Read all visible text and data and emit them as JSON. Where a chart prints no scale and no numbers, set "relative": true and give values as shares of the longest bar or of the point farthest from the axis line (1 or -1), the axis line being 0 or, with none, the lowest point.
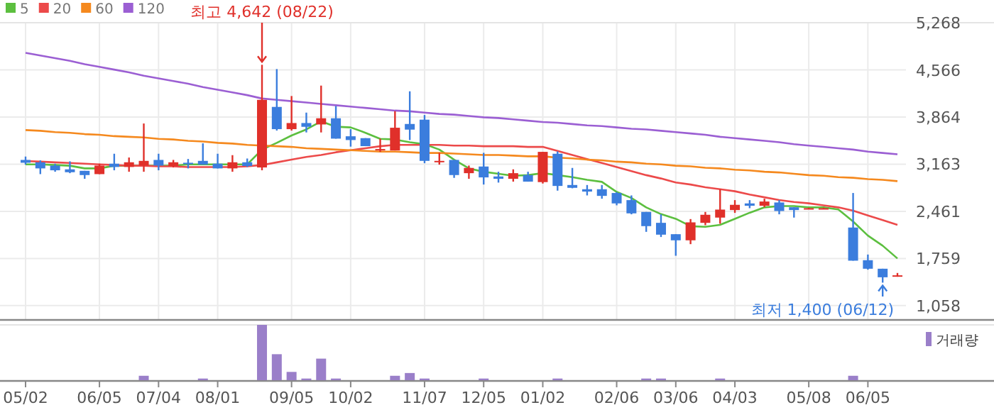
{
  "chart_data": [
    {
      "type": "candlestick",
      "categories": [
        null,
        null,
        null,
        null,
        null,
        null,
        null,
        null,
        null,
        null,
        null,
        null,
        null,
        null,
        null,
        null,
        null,
        null,
        null,
        null,
        null,
        null,
        null,
        null,
        null,
        null,
        null,
        null,
        null,
        null,
        null,
        null,
        null,
        null,
        null,
        null,
        null,
        null,
        null,
        null,
        null,
        null,
        null,
        null,
        null,
        null,
        null,
        null,
        null,
        null,
        null,
        null,
        null,
        null,
        null,
        null,
        null,
        null,
        null,
        null
      ],
      "ohlc": [
        [
          3226,
          3276,
          3156,
          3184
        ],
        [
          3191,
          3219,
          3015,
          3100
        ],
        [
          3142,
          3170,
          3050,
          3072
        ],
        [
          3086,
          3205,
          3029,
          3043
        ],
        [
          3064,
          3064,
          2945,
          3001
        ],
        [
          3015,
          3170,
          3015,
          3142
        ],
        [
          3170,
          3318,
          3072,
          3121
        ],
        [
          3121,
          3262,
          3050,
          3191
        ],
        [
          3142,
          3768,
          3050,
          3212
        ],
        [
          3226,
          3318,
          3072,
          3142
        ],
        [
          3135,
          3226,
          3114,
          3191
        ],
        [
          3184,
          3240,
          3100,
          3163
        ],
        [
          3212,
          3473,
          3156,
          3156
        ],
        [
          3170,
          3318,
          3100,
          3100
        ],
        [
          3100,
          3297,
          3050,
          3191
        ],
        [
          3191,
          3247,
          3121,
          3135
        ],
        [
          3114,
          4642,
          3072,
          4120
        ],
        [
          4015,
          4578,
          3663,
          3684
        ],
        [
          3684,
          4177,
          3663,
          3775
        ],
        [
          3775,
          3930,
          3635,
          3719
        ],
        [
          3754,
          4332,
          3635,
          3846
        ],
        [
          3846,
          4029,
          3543,
          3543
        ],
        [
          3578,
          3684,
          3424,
          3522
        ],
        [
          3550,
          3550,
          3431,
          3431
        ],
        [
          3367,
          3543,
          3346,
          3388
        ],
        [
          3367,
          3952,
          3367,
          3705
        ],
        [
          3761,
          4247,
          3522,
          3677
        ],
        [
          3825,
          3895,
          3177,
          3212
        ],
        [
          3191,
          3332,
          3156,
          3212
        ],
        [
          3226,
          3226,
          2959,
          3001
        ],
        [
          3029,
          3142,
          2945,
          3107
        ],
        [
          3128,
          3332,
          2860,
          2966
        ],
        [
          2980,
          3050,
          2889,
          2945
        ],
        [
          2945,
          3086,
          2903,
          3029
        ],
        [
          3001,
          3050,
          2903,
          2903
        ],
        [
          2896,
          3346,
          2875,
          3346
        ],
        [
          3318,
          3353,
          2769,
          2839
        ],
        [
          2853,
          3107,
          2804,
          2811
        ],
        [
          2790,
          2853,
          2698,
          2755
        ],
        [
          2790,
          2853,
          2649,
          2691
        ],
        [
          2734,
          2748,
          2551,
          2579
        ],
        [
          2628,
          2698,
          2417,
          2431
        ],
        [
          2452,
          2452,
          2156,
          2241
        ],
        [
          2290,
          2417,
          2079,
          2114
        ],
        [
          2121,
          2121,
          1800,
          2030
        ],
        [
          2030,
          2346,
          1973,
          2297
        ],
        [
          2290,
          2452,
          2255,
          2410
        ],
        [
          2368,
          2790,
          2276,
          2487
        ],
        [
          2480,
          2628,
          2438,
          2558
        ],
        [
          2579,
          2628,
          2508,
          2544
        ],
        [
          2544,
          2649,
          2523,
          2607
        ],
        [
          2593,
          2628,
          2417,
          2466
        ],
        [
          2522,
          2522,
          2368,
          2480
        ],
        [
          2494,
          2515,
          2494,
          2508
        ],
        [
          2494,
          2515,
          2494,
          2508
        ],
        null,
        [
          2220,
          2734,
          1727,
          1727
        ],
        [
          1734,
          1818,
          1593,
          1607
        ],
        [
          1607,
          1607,
          1400,
          1480
        ],
        [
          1488,
          1544,
          1488,
          1509
        ]
      ],
      "series": [
        {
          "name": "5",
          "type": "line",
          "color": "#5cbf3f",
          "values": [
            3160,
            3160,
            3150,
            3140,
            3100,
            3100,
            3140,
            3140,
            3140,
            3140,
            3140,
            3160,
            3160,
            3160,
            3160,
            3160,
            3380,
            3480,
            3590,
            3680,
            3800,
            3720,
            3710,
            3630,
            3540,
            3530,
            3490,
            3460,
            3380,
            3230,
            3100,
            3050,
            3020,
            2990,
            3000,
            3030,
            3000,
            2970,
            2930,
            2900,
            2750,
            2660,
            2520,
            2420,
            2350,
            2240,
            2230,
            2260,
            2350,
            2440,
            2520,
            2540,
            2540,
            2520,
            2520,
            2490,
            2310,
            2100,
            1950,
            1760
          ]
        },
        {
          "name": "20",
          "type": "line",
          "color": "#ec4a4a",
          "values": [
            3210,
            3200,
            3190,
            3180,
            3170,
            3160,
            3150,
            3140,
            3140,
            3130,
            3130,
            3120,
            3120,
            3120,
            3120,
            3130,
            3150,
            3190,
            3230,
            3270,
            3300,
            3340,
            3370,
            3400,
            3430,
            3450,
            3450,
            3450,
            3450,
            3440,
            3440,
            3430,
            3430,
            3430,
            3420,
            3420,
            3360,
            3300,
            3240,
            3180,
            3120,
            3060,
            3000,
            2950,
            2890,
            2860,
            2820,
            2790,
            2760,
            2710,
            2670,
            2630,
            2600,
            2580,
            2550,
            2520,
            2470,
            2400,
            2330,
            2260
          ]
        },
        {
          "name": "60",
          "type": "line",
          "color": "#f5891e",
          "values": [
            3670,
            3660,
            3640,
            3630,
            3610,
            3600,
            3580,
            3570,
            3560,
            3540,
            3530,
            3510,
            3500,
            3480,
            3470,
            3450,
            3440,
            3430,
            3420,
            3400,
            3390,
            3380,
            3370,
            3360,
            3350,
            3350,
            3340,
            3330,
            3330,
            3320,
            3310,
            3300,
            3300,
            3290,
            3280,
            3280,
            3260,
            3250,
            3230,
            3220,
            3200,
            3190,
            3170,
            3160,
            3140,
            3130,
            3110,
            3100,
            3080,
            3070,
            3050,
            3040,
            3020,
            3000,
            2990,
            2970,
            2960,
            2940,
            2930,
            2910
          ]
        },
        {
          "name": "120",
          "type": "line",
          "color": "#9b5fd3",
          "values": [
            4820,
            4780,
            4740,
            4700,
            4650,
            4610,
            4570,
            4530,
            4480,
            4440,
            4400,
            4360,
            4310,
            4270,
            4230,
            4190,
            4140,
            4120,
            4100,
            4080,
            4060,
            4040,
            4020,
            4000,
            3980,
            3960,
            3950,
            3930,
            3910,
            3900,
            3880,
            3860,
            3850,
            3830,
            3810,
            3790,
            3780,
            3760,
            3740,
            3730,
            3710,
            3690,
            3680,
            3660,
            3640,
            3620,
            3600,
            3570,
            3550,
            3530,
            3510,
            3490,
            3460,
            3440,
            3420,
            3400,
            3380,
            3350,
            3330,
            3310
          ]
        }
      ],
      "ylim": [
        856,
        5268
      ],
      "yticks": [
        {
          "value": 1058,
          "label": "1,058"
        },
        {
          "value": 1759,
          "label": "1,759"
        },
        {
          "value": 2461,
          "label": "2,461"
        },
        {
          "value": 3163,
          "label": "3,163"
        },
        {
          "value": 3864,
          "label": "3,864"
        },
        {
          "value": 4566,
          "label": "4,566"
        },
        {
          "value": 5268,
          "label": "5,268"
        }
      ],
      "grid": true,
      "legend": "top left",
      "tick_labels": "y",
      "annotations": [
        "최고 4,642 (08/22)",
        "최저 1,400 (06/12)"
      ]
    },
    {
      "type": "bar",
      "relative": true,
      "categories": [
        "05/02",
        null,
        null,
        null,
        null,
        "06/05",
        null,
        null,
        null,
        "07/04",
        null,
        null,
        null,
        "08/01",
        null,
        null,
        null,
        null,
        "09/05",
        null,
        null,
        null,
        "10/02",
        null,
        null,
        null,
        null,
        "11/07",
        null,
        null,
        null,
        "12/05",
        null,
        null,
        null,
        "01/02",
        null,
        null,
        null,
        null,
        "02/06",
        null,
        null,
        null,
        "03/06",
        null,
        null,
        null,
        "04/03",
        null,
        null,
        null,
        null,
        "05/08",
        null,
        null,
        null,
        "06/05",
        null,
        null
      ],
      "series": [
        {
          "name": "거래량",
          "color": "#9a7fc9",
          "values": [
            0,
            0,
            0,
            0,
            0,
            0,
            0,
            0,
            0.08,
            0,
            0,
            0,
            0.03,
            0,
            0,
            0,
            1,
            0.47,
            0.15,
            0.03,
            0.39,
            0.03,
            0,
            0,
            0,
            0.08,
            0.13,
            0.03,
            0,
            0,
            0,
            0.03,
            0,
            0,
            0,
            0,
            0.03,
            0,
            0,
            0,
            0,
            0,
            0.03,
            0.03,
            0,
            0,
            0,
            0.03,
            0,
            0,
            0,
            0,
            0,
            0,
            0,
            0,
            0.08,
            0,
            0,
            0
          ]
        }
      ],
      "legend": "right",
      "tick_labels": "x"
    }
  ]
}
